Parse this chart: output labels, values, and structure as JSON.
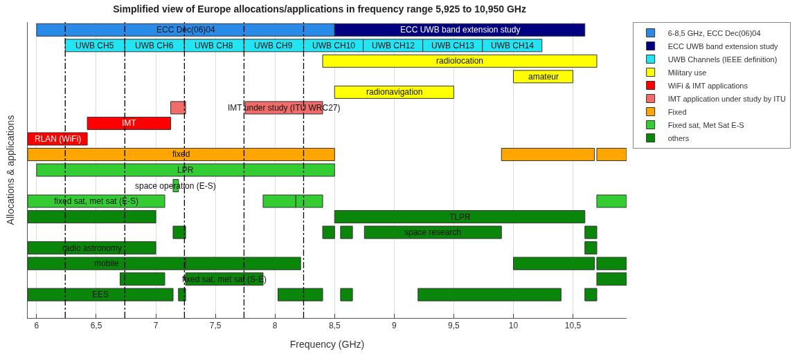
{
  "chart_data": {
    "type": "bar",
    "orientation": "horizontal",
    "title": "Simplified view of Europe allocations/applications in frequency range 5,925 to 10,950 GHz",
    "xlabel": "Frequency (GHz)",
    "ylabel": "Allocations & applications",
    "categories": [
      null,
      null,
      null,
      null,
      null,
      null,
      null,
      null,
      null,
      null,
      null,
      null,
      null,
      null,
      null,
      null,
      null,
      null,
      null
    ],
    "xlim": [
      5.925,
      10.95
    ],
    "xticks": [
      6,
      {
        "value": 6.5,
        "label": "6,5"
      },
      7,
      {
        "value": 7.5,
        "label": "7,5"
      },
      8,
      {
        "value": 8.5,
        "label": "8,5"
      },
      9,
      {
        "value": 9.5,
        "label": "9,5"
      },
      10,
      {
        "value": 10.5,
        "label": "10,5"
      }
    ],
    "grid": "x",
    "legend": "top right",
    "tick_labels": "x",
    "ref_lines": [
      {
        "axis": "x",
        "value": 6.24,
        "color": "#000000",
        "line_style": "dashed"
      },
      {
        "axis": "x",
        "value": 6.74,
        "color": "#000000",
        "line_style": "dashed"
      },
      {
        "axis": "x",
        "value": 7.24,
        "color": "#000000",
        "line_style": "dashed"
      },
      {
        "axis": "x",
        "value": 7.74,
        "color": "#000000",
        "line_style": "dashed"
      },
      {
        "axis": "x",
        "value": 8.24,
        "color": "#000000",
        "line_style": "dashed"
      }
    ],
    "series": [
      {
        "name": "6-8,5 GHz, ECC Dec(06)04",
        "color": "#2a8ae8",
        "base": [
          6.0,
          null,
          null,
          null,
          null,
          null,
          null,
          null,
          null,
          null,
          null,
          null,
          null,
          null,
          null,
          null,
          null,
          null,
          null
        ],
        "values": [
          2.5,
          null,
          null,
          null,
          null,
          null,
          null,
          null,
          null,
          null,
          null,
          null,
          null,
          null,
          null,
          null,
          null,
          null,
          null
        ],
        "value_labels": [
          "ECC Dec(06)04",
          null,
          null,
          null,
          null,
          null,
          null,
          null,
          null,
          null,
          null,
          null,
          null,
          null,
          null,
          null,
          null,
          null,
          null
        ]
      },
      {
        "name": "ECC UWB band extension study",
        "color": "#000080",
        "base": [
          8.5,
          null,
          null,
          null,
          null,
          null,
          null,
          null,
          null,
          null,
          null,
          null,
          null,
          null,
          null,
          null,
          null,
          null,
          null
        ],
        "values": [
          2.1,
          null,
          null,
          null,
          null,
          null,
          null,
          null,
          null,
          null,
          null,
          null,
          null,
          null,
          null,
          null,
          null,
          null,
          null
        ],
        "value_labels": [
          "ECC UWB band extension study",
          null,
          null,
          null,
          null,
          null,
          null,
          null,
          null,
          null,
          null,
          null,
          null,
          null,
          null,
          null,
          null,
          null,
          null
        ]
      },
      {
        "name": "UWB Channels (IEEE definition)",
        "color": "#22e4f2",
        "base": [
          null,
          6.24,
          null,
          null,
          null,
          null,
          null,
          null,
          null,
          null,
          null,
          null,
          null,
          null,
          null,
          null,
          null,
          null,
          null
        ],
        "values": [
          null,
          0.5,
          null,
          null,
          null,
          null,
          null,
          null,
          null,
          null,
          null,
          null,
          null,
          null,
          null,
          null,
          null,
          null,
          null
        ],
        "value_labels": [
          null,
          "UWB CH5",
          null,
          null,
          null,
          null,
          null,
          null,
          null,
          null,
          null,
          null,
          null,
          null,
          null,
          null,
          null,
          null,
          null
        ]
      },
      {
        "color": "#22e4f2",
        "base": [
          null,
          6.74,
          null,
          null,
          null,
          null,
          null,
          null,
          null,
          null,
          null,
          null,
          null,
          null,
          null,
          null,
          null,
          null,
          null
        ],
        "values": [
          null,
          0.5,
          null,
          null,
          null,
          null,
          null,
          null,
          null,
          null,
          null,
          null,
          null,
          null,
          null,
          null,
          null,
          null,
          null
        ],
        "value_labels": [
          null,
          "UWB CH6",
          null,
          null,
          null,
          null,
          null,
          null,
          null,
          null,
          null,
          null,
          null,
          null,
          null,
          null,
          null,
          null,
          null
        ]
      },
      {
        "color": "#22e4f2",
        "base": [
          null,
          7.24,
          null,
          null,
          null,
          null,
          null,
          null,
          null,
          null,
          null,
          null,
          null,
          null,
          null,
          null,
          null,
          null,
          null
        ],
        "values": [
          null,
          0.5,
          null,
          null,
          null,
          null,
          null,
          null,
          null,
          null,
          null,
          null,
          null,
          null,
          null,
          null,
          null,
          null,
          null
        ],
        "value_labels": [
          null,
          "UWB CH8",
          null,
          null,
          null,
          null,
          null,
          null,
          null,
          null,
          null,
          null,
          null,
          null,
          null,
          null,
          null,
          null,
          null
        ]
      },
      {
        "color": "#22e4f2",
        "base": [
          null,
          7.74,
          null,
          null,
          null,
          null,
          null,
          null,
          null,
          null,
          null,
          null,
          null,
          null,
          null,
          null,
          null,
          null,
          null
        ],
        "values": [
          null,
          0.5,
          null,
          null,
          null,
          null,
          null,
          null,
          null,
          null,
          null,
          null,
          null,
          null,
          null,
          null,
          null,
          null,
          null
        ],
        "value_labels": [
          null,
          "UWB CH9",
          null,
          null,
          null,
          null,
          null,
          null,
          null,
          null,
          null,
          null,
          null,
          null,
          null,
          null,
          null,
          null,
          null
        ]
      },
      {
        "color": "#22e4f2",
        "base": [
          null,
          8.24,
          null,
          null,
          null,
          null,
          null,
          null,
          null,
          null,
          null,
          null,
          null,
          null,
          null,
          null,
          null,
          null,
          null
        ],
        "values": [
          null,
          0.5,
          null,
          null,
          null,
          null,
          null,
          null,
          null,
          null,
          null,
          null,
          null,
          null,
          null,
          null,
          null,
          null,
          null
        ],
        "value_labels": [
          null,
          "UWB CH10",
          null,
          null,
          null,
          null,
          null,
          null,
          null,
          null,
          null,
          null,
          null,
          null,
          null,
          null,
          null,
          null,
          null
        ]
      },
      {
        "color": "#22e4f2",
        "base": [
          null,
          8.74,
          null,
          null,
          null,
          null,
          null,
          null,
          null,
          null,
          null,
          null,
          null,
          null,
          null,
          null,
          null,
          null,
          null
        ],
        "values": [
          null,
          0.5,
          null,
          null,
          null,
          null,
          null,
          null,
          null,
          null,
          null,
          null,
          null,
          null,
          null,
          null,
          null,
          null,
          null
        ],
        "value_labels": [
          null,
          "UWB CH12",
          null,
          null,
          null,
          null,
          null,
          null,
          null,
          null,
          null,
          null,
          null,
          null,
          null,
          null,
          null,
          null,
          null
        ]
      },
      {
        "color": "#22e4f2",
        "base": [
          null,
          9.24,
          null,
          null,
          null,
          null,
          null,
          null,
          null,
          null,
          null,
          null,
          null,
          null,
          null,
          null,
          null,
          null,
          null
        ],
        "values": [
          null,
          0.5,
          null,
          null,
          null,
          null,
          null,
          null,
          null,
          null,
          null,
          null,
          null,
          null,
          null,
          null,
          null,
          null,
          null
        ],
        "value_labels": [
          null,
          "UWB CH13",
          null,
          null,
          null,
          null,
          null,
          null,
          null,
          null,
          null,
          null,
          null,
          null,
          null,
          null,
          null,
          null,
          null
        ]
      },
      {
        "color": "#22e4f2",
        "base": [
          null,
          9.74,
          null,
          null,
          null,
          null,
          null,
          null,
          null,
          null,
          null,
          null,
          null,
          null,
          null,
          null,
          null,
          null,
          null
        ],
        "values": [
          null,
          0.5,
          null,
          null,
          null,
          null,
          null,
          null,
          null,
          null,
          null,
          null,
          null,
          null,
          null,
          null,
          null,
          null,
          null
        ],
        "value_labels": [
          null,
          "UWB CH14",
          null,
          null,
          null,
          null,
          null,
          null,
          null,
          null,
          null,
          null,
          null,
          null,
          null,
          null,
          null,
          null,
          null
        ]
      },
      {
        "name": "Military use",
        "color": "#ffff00",
        "base": [
          null,
          null,
          8.4,
          10.0,
          8.5,
          null,
          null,
          null,
          null,
          null,
          null,
          null,
          null,
          null,
          null,
          null,
          null,
          null,
          null
        ],
        "values": [
          null,
          null,
          2.3,
          0.5,
          1.0,
          null,
          null,
          null,
          null,
          null,
          null,
          null,
          null,
          null,
          null,
          null,
          null,
          null,
          null
        ],
        "value_labels": [
          null,
          null,
          "radiolocation",
          "amateur",
          "radionavigation",
          null,
          null,
          null,
          null,
          null,
          null,
          null,
          null,
          null,
          null,
          null,
          null,
          null,
          null
        ]
      },
      {
        "name": "WiFi & IMT applications",
        "color": "#ff0000",
        "base": [
          null,
          null,
          null,
          null,
          null,
          null,
          6.425,
          5.925,
          null,
          null,
          null,
          null,
          null,
          null,
          null,
          null,
          null,
          null,
          null
        ],
        "values": [
          null,
          null,
          null,
          null,
          null,
          null,
          0.7,
          0.5,
          null,
          null,
          null,
          null,
          null,
          null,
          null,
          null,
          null,
          null,
          null
        ],
        "value_labels": [
          null,
          null,
          null,
          null,
          null,
          null,
          "IMT",
          "RLAN (WiFi)",
          null,
          null,
          null,
          null,
          null,
          null,
          null,
          null,
          null,
          null,
          null
        ]
      },
      {
        "name": "IMT application under study by ITU",
        "color": "#f26b6b",
        "base": [
          null,
          null,
          null,
          null,
          null,
          7.125,
          null,
          null,
          null,
          null,
          null,
          null,
          null,
          null,
          null,
          null,
          null,
          null,
          null
        ],
        "values": [
          null,
          null,
          null,
          null,
          null,
          0.125,
          null,
          null,
          null,
          null,
          null,
          null,
          null,
          null,
          null,
          null,
          null,
          null,
          null
        ]
      },
      {
        "color": "#f26b6b",
        "base": [
          null,
          null,
          null,
          null,
          null,
          7.75,
          null,
          null,
          null,
          null,
          null,
          null,
          null,
          null,
          null,
          null,
          null,
          null,
          null
        ],
        "values": [
          null,
          null,
          null,
          null,
          null,
          0.65,
          null,
          null,
          null,
          null,
          null,
          null,
          null,
          null,
          null,
          null,
          null,
          null,
          null
        ],
        "value_labels": [
          null,
          null,
          null,
          null,
          null,
          "IMT under study (ITU WRC27)",
          null,
          null,
          null,
          null,
          null,
          null,
          null,
          null,
          null,
          null,
          null,
          null,
          null
        ]
      },
      {
        "name": "Fixed",
        "color": "#ffa500",
        "base": [
          null,
          null,
          null,
          null,
          null,
          null,
          null,
          null,
          5.925,
          null,
          null,
          null,
          null,
          null,
          null,
          null,
          null,
          null,
          null
        ],
        "values": [
          null,
          null,
          null,
          null,
          null,
          null,
          null,
          null,
          2.575,
          null,
          null,
          null,
          null,
          null,
          null,
          null,
          null,
          null,
          null
        ],
        "value_labels": [
          null,
          null,
          null,
          null,
          null,
          null,
          null,
          null,
          "fixed",
          null,
          null,
          null,
          null,
          null,
          null,
          null,
          null,
          null,
          null
        ]
      },
      {
        "color": "#ffa500",
        "base": [
          null,
          null,
          null,
          null,
          null,
          null,
          null,
          null,
          9.9,
          null,
          null,
          null,
          null,
          null,
          null,
          null,
          null,
          null,
          null
        ],
        "values": [
          null,
          null,
          null,
          null,
          null,
          null,
          null,
          null,
          0.78,
          null,
          null,
          null,
          null,
          null,
          null,
          null,
          null,
          null,
          null
        ]
      },
      {
        "color": "#ffa500",
        "base": [
          null,
          null,
          null,
          null,
          null,
          null,
          null,
          null,
          10.7,
          null,
          null,
          null,
          null,
          null,
          null,
          null,
          null,
          null,
          null
        ],
        "values": [
          null,
          null,
          null,
          null,
          null,
          null,
          null,
          null,
          0.25,
          null,
          null,
          null,
          null,
          null,
          null,
          null,
          null,
          null,
          null
        ]
      },
      {
        "name": "Fixed sat, Met Sat E-S",
        "color": "#33cc33",
        "base": [
          null,
          null,
          null,
          null,
          null,
          null,
          null,
          null,
          null,
          6.0,
          7.145,
          5.925,
          null,
          null,
          null,
          null,
          null,
          null,
          null
        ],
        "values": [
          null,
          null,
          null,
          null,
          null,
          null,
          null,
          null,
          null,
          2.5,
          0.045,
          1.15,
          null,
          null,
          null,
          null,
          null,
          null,
          null
        ],
        "value_labels": [
          null,
          null,
          null,
          null,
          null,
          null,
          null,
          null,
          null,
          "LPR",
          "space operation (E-S)",
          "fixed sat, met sat (E-S)",
          null,
          null,
          null,
          null,
          null,
          null,
          null
        ]
      },
      {
        "color": "#33cc33",
        "base": [
          null,
          null,
          null,
          null,
          null,
          null,
          null,
          null,
          null,
          null,
          null,
          7.9,
          null,
          null,
          null,
          null,
          null,
          null,
          null
        ],
        "values": [
          null,
          null,
          null,
          null,
          null,
          null,
          null,
          null,
          null,
          null,
          null,
          0.275,
          null,
          null,
          null,
          null,
          null,
          null,
          null
        ]
      },
      {
        "color": "#33cc33",
        "base": [
          null,
          null,
          null,
          null,
          null,
          null,
          null,
          null,
          null,
          null,
          null,
          8.175,
          null,
          null,
          null,
          null,
          null,
          null,
          null
        ],
        "values": [
          null,
          null,
          null,
          null,
          null,
          null,
          null,
          null,
          null,
          null,
          null,
          0.225,
          null,
          null,
          null,
          null,
          null,
          null,
          null
        ]
      },
      {
        "color": "#33cc33",
        "base": [
          null,
          null,
          null,
          null,
          null,
          null,
          null,
          null,
          null,
          null,
          null,
          10.7,
          null,
          null,
          null,
          null,
          null,
          null,
          null
        ],
        "values": [
          null,
          null,
          null,
          null,
          null,
          null,
          null,
          null,
          null,
          null,
          null,
          0.25,
          null,
          null,
          null,
          null,
          null,
          null,
          null
        ]
      },
      {
        "name": "others",
        "color": "#0a870a",
        "base": [
          null,
          null,
          null,
          null,
          null,
          null,
          null,
          null,
          null,
          null,
          null,
          null,
          5.925,
          7.145,
          5.925,
          5.925,
          6.7,
          5.925,
          null
        ],
        "values": [
          null,
          null,
          null,
          null,
          null,
          null,
          null,
          null,
          null,
          null,
          null,
          null,
          1.075,
          0.105,
          1.075,
          1.325,
          0.375,
          1.22,
          null
        ],
        "value_labels": [
          null,
          null,
          null,
          null,
          null,
          null,
          null,
          null,
          null,
          null,
          null,
          null,
          null,
          null,
          "radio astronomy",
          "mobile",
          null,
          "EES",
          null
        ]
      },
      {
        "color": "#0a870a",
        "base": [
          null,
          null,
          null,
          null,
          null,
          null,
          null,
          null,
          null,
          null,
          null,
          null,
          8.5,
          8.4,
          10.6,
          7.25,
          7.25,
          7.19,
          null
        ],
        "values": [
          null,
          null,
          null,
          null,
          null,
          null,
          null,
          null,
          null,
          null,
          null,
          null,
          2.1,
          0.1,
          0.1,
          0.965,
          0.65,
          0.06,
          null
        ],
        "value_labels": [
          null,
          null,
          null,
          null,
          null,
          null,
          null,
          null,
          null,
          null,
          null,
          null,
          "TLPR",
          null,
          null,
          null,
          "fixed sat, met sat (S-E)",
          null,
          null
        ]
      },
      {
        "color": "#0a870a",
        "base": [
          null,
          null,
          null,
          null,
          null,
          null,
          null,
          null,
          null,
          null,
          null,
          null,
          null,
          8.55,
          null,
          10.0,
          10.7,
          8.025,
          null
        ],
        "values": [
          null,
          null,
          null,
          null,
          null,
          null,
          null,
          null,
          null,
          null,
          null,
          null,
          null,
          0.1,
          null,
          0.68,
          0.25,
          0.375,
          null
        ]
      },
      {
        "color": "#0a870a",
        "base": [
          null,
          null,
          null,
          null,
          null,
          null,
          null,
          null,
          null,
          null,
          null,
          null,
          null,
          8.75,
          null,
          10.7,
          null,
          8.55,
          null
        ],
        "values": [
          null,
          null,
          null,
          null,
          null,
          null,
          null,
          null,
          null,
          null,
          null,
          null,
          null,
          1.15,
          null,
          0.25,
          null,
          0.1,
          null
        ],
        "value_labels": [
          null,
          null,
          null,
          null,
          null,
          null,
          null,
          null,
          null,
          null,
          null,
          null,
          null,
          "space research",
          null,
          null,
          null,
          null,
          null
        ]
      },
      {
        "color": "#0a870a",
        "base": [
          null,
          null,
          null,
          null,
          null,
          null,
          null,
          null,
          null,
          null,
          null,
          null,
          null,
          10.6,
          null,
          null,
          null,
          9.2,
          null
        ],
        "values": [
          null,
          null,
          null,
          null,
          null,
          null,
          null,
          null,
          null,
          null,
          null,
          null,
          null,
          0.1,
          null,
          null,
          null,
          1.2,
          null
        ]
      },
      {
        "color": "#0a870a",
        "base": [
          null,
          null,
          null,
          null,
          null,
          null,
          null,
          null,
          null,
          null,
          null,
          null,
          null,
          null,
          null,
          null,
          null,
          10.6,
          null
        ],
        "values": [
          null,
          null,
          null,
          null,
          null,
          null,
          null,
          null,
          null,
          null,
          null,
          null,
          null,
          null,
          null,
          null,
          null,
          0.1,
          null
        ]
      }
    ]
  }
}
